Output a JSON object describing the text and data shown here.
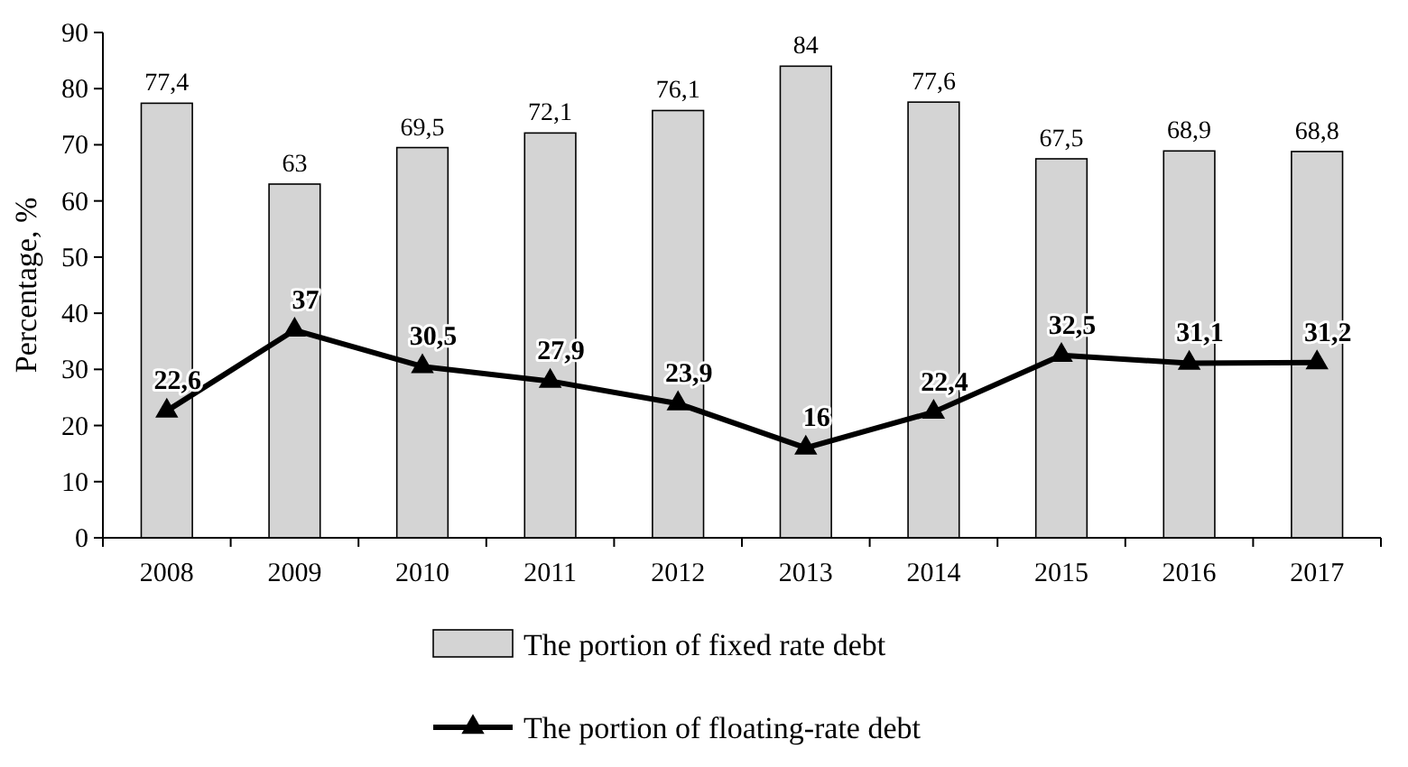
{
  "chart_data": {
    "type": "bar",
    "ylabel": "Percentage, %",
    "categories": [
      "2008",
      "2009",
      "2010",
      "2011",
      "2012",
      "2013",
      "2014",
      "2015",
      "2016",
      "2017"
    ],
    "ylim": [
      0,
      90
    ],
    "yticks": [
      0,
      10,
      20,
      30,
      40,
      50,
      60,
      70,
      80,
      90
    ],
    "grid": false,
    "legend": "bottom",
    "marker": "triangle",
    "series": [
      {
        "name": "The portion of fixed rate debt",
        "color": "#d4d4d4",
        "values": [
          77.4,
          63,
          69.5,
          72.1,
          76.1,
          84,
          77.6,
          67.5,
          68.9,
          68.8
        ],
        "value_labels": [
          "77,4",
          "63",
          "69,5",
          "72,1",
          "76,1",
          "84",
          "77,6",
          "67,5",
          "68,9",
          "68,8"
        ]
      },
      {
        "name": "The portion of floating-rate debt",
        "type": "line",
        "color": "#000000",
        "values": [
          22.6,
          37,
          30.5,
          27.9,
          23.9,
          16,
          22.4,
          32.5,
          31.1,
          31.2
        ],
        "value_labels": [
          "22,6",
          "37",
          "30,5",
          "27,9",
          "23,9",
          "16",
          "22,4",
          "32,5",
          "31,1",
          "31,2"
        ]
      }
    ]
  }
}
